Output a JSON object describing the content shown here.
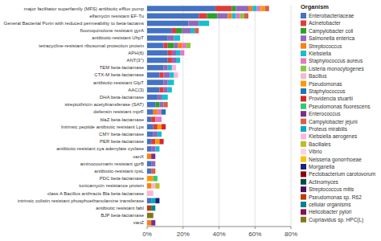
{
  "chart_data": {
    "type": "bar",
    "orientation": "horizontal",
    "stacked": true,
    "grid": true,
    "legend": "right",
    "legend_title": "Organism",
    "xlim": [
      0,
      80
    ],
    "xticks": [
      {
        "value": 0,
        "label": "0%"
      },
      {
        "value": 20,
        "label": "20%"
      },
      {
        "value": 40,
        "label": "40%"
      },
      {
        "value": 60,
        "label": "60%"
      },
      {
        "value": 80,
        "label": "80%"
      }
    ],
    "categories": [
      "major facilitator superfamily (MFS) antibiotic efflux pump",
      "elfamycin resistant EF-Tu",
      "General Bacterial Porin with reduced permeability to beta-lactams",
      "fluoroquinolone resistant gyrA",
      "antibiotic-resistant UhpT",
      "tetracycline-resistant ribosomal protection protein",
      "APH(6)",
      "ANT(3'')",
      "TEM beta-lactamase",
      "CTX-M beta-lactamase",
      "antibiotic-resistant GlpT",
      "AAC(3)",
      "DHA beta-lactamase",
      "streptothricin acetyltransferase (SAT)",
      "defensin resistant mprF",
      "blaZ beta-lactamase",
      "Intrinsic peptide antibiotic resistant Lps",
      "CMY beta-lactamase",
      "PER beta-lactamase",
      "antibiotic-resistant cya adenylate cyclase",
      "vanX",
      "aminocoumarin resistant gyrB",
      "antibiotic-resistant rpsL",
      "PDC beta-lactamase",
      "tunicamycin resistance protein",
      "class A Bacillus anthracis Bla beta-lactamase",
      "intrinsic colistin resistant phosphoethanolamine transferase",
      "antibiotic resistant fabI",
      "BJP beta-lactamase",
      "vanZ"
    ],
    "series": [
      {
        "name": "Enterobacteriaceae",
        "color": "#4472c4",
        "values": [
          37.93103448275862,
          28.73563218390805,
          22.98850574712644,
          13.79310344827586,
          11.49425287356322,
          9.195402298850574,
          11.49425287356322,
          11.49425287356322,
          9.195402298850574,
          6.896551724137931,
          9.195402298850574,
          6.896551724137931,
          5.747126436781609,
          4.597701149425287,
          3.448275862068966,
          2.298850574712644,
          3.448275862068966,
          3.448275862068966,
          2.298850574712644,
          2.298850574712644,
          0,
          2.298850574712644,
          2.298850574712644,
          0,
          0,
          0,
          2.298850574712644,
          0,
          0,
          0
        ]
      },
      {
        "name": "Acinetobacter",
        "color": "#e03b3b",
        "values": [
          9.195402298850574,
          4.597701149425287,
          0,
          2.298850574712644,
          0,
          2.298850574712644,
          2.298850574712644,
          2.298850574712644,
          0,
          2.298850574712644,
          0,
          2.298850574712644,
          0,
          0,
          0,
          2.298850574712644,
          2.298850574712644,
          0,
          2.298850574712644,
          0,
          0,
          0,
          0,
          0,
          0,
          0,
          0,
          0,
          0,
          0
        ]
      },
      {
        "name": "Campylobacter coli",
        "color": "#2ca02c",
        "values": [
          2.298850574712644,
          5.747126436781609,
          0,
          3.448275862068966,
          0,
          3.448275862068966,
          0,
          0,
          0,
          0,
          0,
          0,
          0,
          2.298850574712644,
          0,
          0,
          0,
          0,
          0,
          0,
          0,
          0,
          0,
          0,
          0,
          0,
          0,
          0,
          0,
          0
        ]
      },
      {
        "name": "Salmonella enterica",
        "color": "#9467bd",
        "values": [
          6.896551724137931,
          5.747126436781609,
          5.747126436781609,
          4.597701149425287,
          3.448275862068966,
          2.298850574712644,
          2.298850574712644,
          2.298850574712644,
          2.298850574712644,
          3.448275862068966,
          2.298850574712644,
          2.298850574712644,
          2.298850574712644,
          2.298850574712644,
          0,
          0,
          0,
          2.298850574712644,
          0,
          2.298850574712644,
          0,
          2.298850574712644,
          0,
          0,
          0,
          0,
          0,
          0,
          0,
          0
        ]
      },
      {
        "name": "Streptococcus",
        "color": "#ff7f0e",
        "values": [
          2.298850574712644,
          2.298850574712644,
          0,
          0,
          0,
          2.298850574712644,
          0,
          0,
          0,
          0,
          0,
          0,
          0,
          0,
          2.298850574712644,
          0,
          0,
          0,
          0,
          0,
          2.298850574712644,
          0,
          0,
          0,
          2.298850574712644,
          0,
          0,
          0,
          0,
          2.298850574712644
        ]
      },
      {
        "name": "Klebsiella",
        "color": "#17becf",
        "values": [
          2.298850574712644,
          2.298850574712644,
          5.747126436781609,
          2.298850574712644,
          3.448275862068966,
          0,
          2.298850574712644,
          2.298850574712644,
          2.298850574712644,
          2.298850574712644,
          3.448275862068966,
          2.298850574712644,
          3.448275862068966,
          0,
          0,
          0,
          0,
          2.298850574712644,
          0,
          2.298850574712644,
          0,
          0,
          0,
          0,
          0,
          0,
          0,
          0,
          0,
          0
        ]
      },
      {
        "name": "Staphylococcus aureus",
        "color": "#e377c2",
        "values": [
          2.298850574712644,
          2.298850574712644,
          0,
          0,
          0,
          2.298850574712644,
          2.298850574712644,
          0,
          0,
          0,
          0,
          0,
          0,
          0,
          2.298850574712644,
          3.448275862068966,
          0,
          0,
          0,
          0,
          0,
          0,
          0,
          0,
          0,
          0,
          0,
          0,
          0,
          0
        ]
      },
      {
        "name": "Listeria monocytogenes",
        "color": "#8dc63f",
        "values": [
          0,
          2.298850574712644,
          0,
          0,
          0,
          2.298850574712644,
          0,
          0,
          0,
          0,
          0,
          0,
          0,
          0,
          0,
          0,
          0,
          0,
          0,
          0,
          0,
          0,
          0,
          0,
          0,
          0,
          0,
          0,
          0,
          0
        ]
      },
      {
        "name": "Bacillus",
        "color": "#f7b6d2",
        "values": [
          0,
          0,
          0,
          0,
          0,
          0,
          0,
          0,
          0,
          0,
          0,
          0,
          0,
          0,
          0,
          0,
          0,
          0,
          0,
          0,
          0,
          0,
          0,
          0,
          2.298850574712644,
          3.448275862068966,
          0,
          0,
          0,
          0
        ]
      },
      {
        "name": "Pseudomonas",
        "color": "#ff9800",
        "values": [
          2.298850574712644,
          0,
          0,
          0,
          0,
          0,
          0,
          0,
          0,
          0,
          0,
          0,
          0,
          0,
          0,
          0,
          2.298850574712644,
          0,
          2.298850574712644,
          0,
          0,
          0,
          0,
          3.448275862068966,
          0,
          0,
          0,
          0,
          0,
          0
        ]
      },
      {
        "name": "Staphylococcus",
        "color": "#1f77b4",
        "values": [
          0,
          0,
          0,
          0,
          0,
          0,
          0,
          0,
          0,
          0,
          0,
          0,
          0,
          0,
          2.298850574712644,
          0,
          0,
          0,
          0,
          0,
          0,
          0,
          0,
          0,
          0,
          0,
          0,
          0,
          0,
          0
        ]
      },
      {
        "name": "Providencia stuartii",
        "color": "#d62728",
        "values": [
          0,
          0,
          0,
          0,
          0,
          0,
          0,
          0,
          0,
          0,
          0,
          0,
          0,
          0,
          0,
          0,
          2.298850574712644,
          0,
          2.298850574712644,
          0,
          0,
          0,
          0,
          0,
          0,
          0,
          0,
          0,
          0,
          0
        ]
      },
      {
        "name": "Pseudomonas fluorescens",
        "color": "#2ecc71",
        "values": [
          0,
          0,
          0,
          0,
          0,
          0,
          0,
          0,
          0,
          0,
          0,
          0,
          0,
          0,
          0,
          0,
          0,
          0,
          0,
          0,
          0,
          0,
          0,
          2.298850574712644,
          0,
          0,
          0,
          0,
          0,
          0
        ]
      },
      {
        "name": "Enterococcus",
        "color": "#7b2d8b",
        "values": [
          0,
          0,
          0,
          0,
          0,
          0,
          0,
          0,
          0,
          0,
          0,
          0,
          0,
          0,
          0,
          0,
          0,
          0,
          0,
          0,
          2.298850574712644,
          0,
          0,
          0,
          0,
          0,
          0,
          0,
          0,
          2.298850574712644
        ]
      },
      {
        "name": "Campylobacter jejuni",
        "color": "#d6604d",
        "values": [
          2.298850574712644,
          2.298850574712644,
          0,
          2.298850574712644,
          0,
          0,
          0,
          0,
          0,
          0,
          0,
          0,
          0,
          2.298850574712644,
          0,
          0,
          0,
          0,
          0,
          0,
          0,
          0,
          2.298850574712644,
          0,
          0,
          0,
          0,
          0,
          0,
          0
        ]
      },
      {
        "name": "Proteus mirabilis",
        "color": "#00acc1",
        "values": [
          0,
          0,
          0,
          0,
          0,
          0,
          0,
          0,
          0,
          0,
          0,
          0,
          0,
          0,
          0,
          0,
          0,
          0,
          0,
          0,
          0,
          0,
          0,
          0,
          0,
          0,
          2.298850574712644,
          0,
          0,
          0
        ]
      },
      {
        "name": "Klebsiella aerogenes",
        "color": "#ffb3de",
        "values": [
          0,
          0,
          0,
          0,
          0,
          0,
          0,
          0,
          2.298850574712644,
          2.298850574712644,
          0,
          0,
          0,
          0,
          0,
          0,
          0,
          0,
          0,
          0,
          0,
          0,
          0,
          0,
          0,
          0,
          0,
          0,
          0,
          0
        ]
      },
      {
        "name": "Bacillales",
        "color": "#bcbd22",
        "values": [
          0,
          0,
          0,
          0,
          0,
          0,
          0,
          0,
          0,
          0,
          0,
          0,
          0,
          0,
          0,
          0,
          0,
          0,
          0,
          0,
          0,
          0,
          0,
          0,
          2.298850574712644,
          0,
          0,
          0,
          0,
          0
        ]
      },
      {
        "name": "Vibrio",
        "color": "#ffd1dc",
        "values": [
          0,
          0,
          0,
          0,
          0,
          0,
          0,
          0,
          0,
          0,
          0,
          0,
          0,
          0,
          0,
          0,
          0,
          0,
          0,
          0,
          0,
          0,
          0,
          0,
          0,
          0,
          0,
          0,
          0,
          0
        ]
      },
      {
        "name": "Neisseria gonorrhoeae",
        "color": "#ffbf00",
        "values": [
          0,
          0,
          0,
          0,
          0,
          0,
          0,
          0,
          0,
          0,
          0,
          0,
          0,
          0,
          0,
          0,
          0,
          0,
          0,
          0,
          0,
          0,
          0,
          0,
          0,
          0,
          0,
          0,
          0,
          0
        ]
      },
      {
        "name": "Morganella",
        "color": "#1a237e",
        "values": [
          0,
          0,
          0,
          0,
          0,
          0,
          0,
          0,
          0,
          0,
          0,
          0,
          0,
          0,
          0,
          0,
          0,
          0,
          0,
          0,
          0,
          0,
          0,
          0,
          0,
          0,
          2.298850574712644,
          0,
          0,
          0
        ]
      },
      {
        "name": "Pectobacterium carotovorum",
        "color": "#8b0000",
        "values": [
          0,
          0,
          0,
          0,
          0,
          0,
          0,
          0,
          0,
          0,
          0,
          0,
          0,
          0,
          0,
          0,
          0,
          0,
          0,
          0,
          0,
          0,
          0,
          0,
          0,
          0,
          0,
          0,
          0,
          0
        ]
      },
      {
        "name": "Actinomyces",
        "color": "#004d40",
        "values": [
          0,
          0,
          0,
          0,
          0,
          0,
          0,
          0,
          0,
          0,
          0,
          0,
          0,
          0,
          0,
          0,
          0,
          0,
          0,
          0,
          0,
          0,
          0,
          0,
          0,
          0,
          0,
          0,
          0,
          0
        ]
      },
      {
        "name": "Streptococcus mitis",
        "color": "#4a0e5c",
        "values": [
          0,
          0,
          0,
          0,
          0,
          0,
          0,
          0,
          0,
          0,
          0,
          0,
          0,
          0,
          0,
          0,
          0,
          0,
          0,
          0,
          0,
          0,
          0,
          0,
          0,
          0,
          0,
          0,
          0,
          0
        ]
      },
      {
        "name": "Pseudomonas sp. R62",
        "color": "#bf3b00",
        "values": [
          0,
          0,
          0,
          0,
          0,
          0,
          0,
          0,
          0,
          0,
          0,
          0,
          0,
          0,
          0,
          0,
          0,
          0,
          0,
          0,
          0,
          0,
          0,
          0,
          0,
          0,
          0,
          2.298850574712644,
          0,
          0
        ]
      },
      {
        "name": "cellular organisms",
        "color": "#00838f",
        "values": [
          0,
          0,
          0,
          0,
          0,
          0,
          0,
          0,
          0,
          0,
          0,
          0,
          0,
          0,
          0,
          0,
          0,
          0,
          0,
          0,
          0,
          0,
          0,
          0,
          0,
          0,
          0,
          2.298850574712644,
          0,
          0
        ]
      },
      {
        "name": "Helicobacter pylori",
        "color": "#880e4f",
        "values": [
          0,
          0,
          0,
          0,
          0,
          0,
          0,
          0,
          0,
          0,
          0,
          0,
          0,
          0,
          0,
          0,
          0,
          0,
          0,
          0,
          0,
          0,
          0,
          0,
          0,
          0,
          0,
          0,
          0,
          0
        ]
      },
      {
        "name": "Cupriavidus sp. HPC(L)",
        "color": "#827717",
        "values": [
          0,
          0,
          0,
          0,
          0,
          0,
          0,
          0,
          0,
          0,
          0,
          0,
          0,
          0,
          0,
          0,
          0,
          0,
          0,
          0,
          0,
          0,
          0,
          0,
          0,
          0,
          0,
          0,
          3.448275862068966,
          0
        ]
      }
    ]
  }
}
